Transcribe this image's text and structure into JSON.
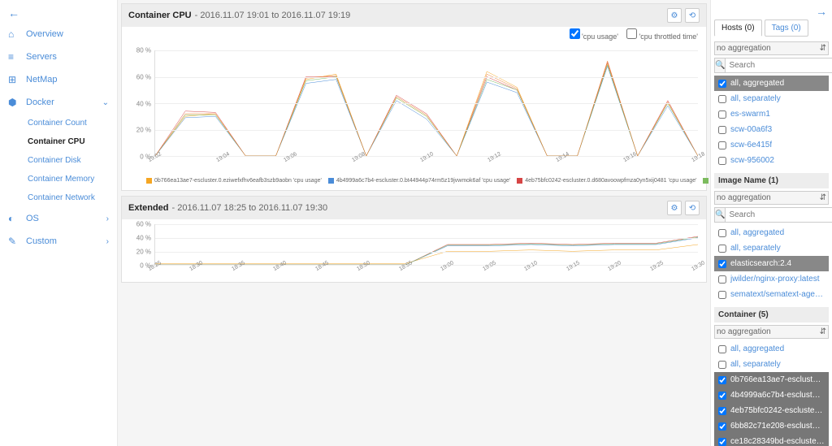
{
  "sidebar": {
    "items": [
      {
        "icon": "⌂",
        "label": "Overview"
      },
      {
        "icon": "≡",
        "label": "Servers"
      },
      {
        "icon": "⊞",
        "label": "NetMap"
      },
      {
        "icon": "⬢",
        "label": "Docker",
        "expandable": true,
        "expanded": true
      },
      {
        "icon": "◐",
        "label": "OS",
        "expandable": true
      },
      {
        "icon": "✎",
        "label": "Custom",
        "expandable": true
      }
    ],
    "docker_sub": [
      {
        "label": "Container Count"
      },
      {
        "label": "Container CPU",
        "active": true
      },
      {
        "label": "Container Disk"
      },
      {
        "label": "Container Memory"
      },
      {
        "label": "Container Network"
      }
    ]
  },
  "panel1": {
    "title": "Container CPU",
    "subtitle": "- 2016.11.07 19:01 to 2016.11.07 19:19",
    "legend_top": [
      {
        "label": "'cpu usage'",
        "checked": true
      },
      {
        "label": "'cpu throttled time'",
        "checked": false
      }
    ],
    "chart": {
      "ylim": [
        0,
        80
      ],
      "ytick_step": 20,
      "yunit": " %",
      "xlabels": [
        "19:02",
        "19:04",
        "19:06",
        "19:08",
        "19:10",
        "19:12",
        "19:14",
        "19:16",
        "19:18"
      ],
      "grid_color": "#eeeeee",
      "series": [
        {
          "color": "#f5a623",
          "values": [
            0,
            30,
            32,
            0,
            0,
            58,
            62,
            0,
            44,
            30,
            0,
            64,
            52,
            0,
            0,
            70,
            0,
            40,
            0
          ]
        },
        {
          "color": "#4a8cd8",
          "values": [
            0,
            29,
            30,
            0,
            0,
            55,
            58,
            0,
            42,
            28,
            0,
            56,
            48,
            0,
            0,
            68,
            0,
            38,
            0
          ]
        },
        {
          "color": "#d64545",
          "values": [
            0,
            34,
            33,
            0,
            0,
            60,
            60,
            0,
            46,
            32,
            0,
            60,
            50,
            0,
            0,
            71,
            0,
            42,
            0
          ]
        },
        {
          "color": "#7cbb5e",
          "values": [
            0,
            31,
            31,
            0,
            0,
            57,
            60,
            0,
            44,
            30,
            0,
            58,
            50,
            0,
            0,
            69,
            0,
            40,
            0
          ]
        },
        {
          "color": "#f08030",
          "values": [
            0,
            32,
            32,
            0,
            0,
            59,
            61,
            0,
            45,
            31,
            0,
            62,
            51,
            0,
            0,
            72,
            0,
            41,
            0
          ]
        }
      ]
    },
    "legend_bottom": [
      {
        "color": "#f5a623",
        "label": "0b766ea13ae7-escluster.0.eziwefxfhv6eafb3szb9aobn 'cpu usage'"
      },
      {
        "color": "#4a8cd8",
        "label": "4b4999a6c7b4-escluster.0.bt44944p74rm5z19jvwmok6af 'cpu usage'"
      },
      {
        "color": "#d64545",
        "label": "4eb75bfc0242-escluster.0.d680avoowpfmza0yn5xij0481 'cpu usage'"
      },
      {
        "color": "#7cbb5e",
        "label": "6bb82c71e208-escluster.0.08sihvionh3kugsd4pyg6lkuf 'cpu usage'"
      },
      {
        "color": "#f08030",
        "label": "ce18c28349bd-escluster.0.cnea6vcjfy2iejg6btqnmn7l 'cpu usage'"
      }
    ]
  },
  "panel2": {
    "title": "Extended",
    "subtitle": "- 2016.11.07 18:25 to 2016.11.07 19:30",
    "chart": {
      "ylim": [
        0,
        60
      ],
      "ytick_step": 20,
      "yunit": " %",
      "xlabels": [
        "18:25",
        "18:30",
        "18:35",
        "18:40",
        "18:45",
        "18:50",
        "18:55",
        "19:00",
        "19:05",
        "19:10",
        "19:15",
        "19:20",
        "19:25",
        "19:30"
      ],
      "grid_color": "#eeeeee",
      "series": [
        {
          "color": "#f5a623",
          "values": [
            2,
            2,
            2,
            2,
            2,
            2,
            2,
            20,
            20,
            22,
            20,
            22,
            22,
            30
          ]
        },
        {
          "color": "#4a8cd8",
          "values": [
            0,
            0,
            0,
            0,
            0,
            0,
            0,
            28,
            28,
            30,
            28,
            30,
            30,
            40
          ]
        },
        {
          "color": "#d64545",
          "values": [
            0,
            0,
            0,
            0,
            0,
            0,
            0,
            30,
            30,
            32,
            30,
            32,
            32,
            42
          ]
        },
        {
          "color": "#7cbb5e",
          "values": [
            0,
            0,
            0,
            0,
            0,
            0,
            0,
            29,
            29,
            31,
            29,
            31,
            31,
            41
          ]
        }
      ]
    }
  },
  "right": {
    "tabs": [
      {
        "label": "Hosts (0)",
        "active": true
      },
      {
        "label": "Tags (0)",
        "active": false
      }
    ],
    "sections": [
      {
        "agg_label": "no aggregation",
        "search_placeholder": "Search",
        "items": [
          {
            "label": "all, aggregated",
            "checked": true,
            "selected": true
          },
          {
            "label": "all, separately",
            "checked": false
          },
          {
            "label": "es-swarm1",
            "checked": false
          },
          {
            "label": "scw-00a6f3",
            "checked": false
          },
          {
            "label": "scw-6e415f",
            "checked": false
          },
          {
            "label": "scw-956002",
            "checked": false
          }
        ]
      },
      {
        "header": "Image Name (1)",
        "agg_label": "no aggregation",
        "search_placeholder": "Search",
        "items": [
          {
            "label": "all, aggregated",
            "checked": false
          },
          {
            "label": "all, separately",
            "checked": false
          },
          {
            "label": "elasticsearch:2.4",
            "checked": true,
            "selected": true
          },
          {
            "label": "jwilder/nginx-proxy:latest",
            "checked": false
          },
          {
            "label": "sematext/sematext-agent-...",
            "checked": false
          }
        ]
      },
      {
        "header": "Container (5)",
        "agg_label": "no aggregation",
        "items": [
          {
            "label": "all, aggregated",
            "checked": false
          },
          {
            "label": "all, separately",
            "checked": false
          },
          {
            "label": "0b766ea13ae7-escluster.0....",
            "checked": true,
            "dark": true
          },
          {
            "label": "4b4999a6c7b4-escluster.0...",
            "checked": true,
            "dark": true
          },
          {
            "label": "4eb75bfc0242-escluster.0....",
            "checked": true,
            "dark": true
          },
          {
            "label": "6bb82c71e208-escluster.0....",
            "checked": true,
            "dark": true
          },
          {
            "label": "ce18c28349bd-escluster.0...",
            "checked": true,
            "dark": true
          }
        ]
      }
    ]
  }
}
